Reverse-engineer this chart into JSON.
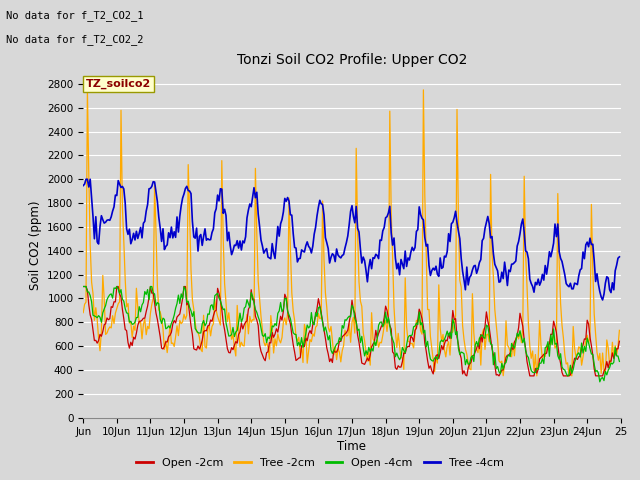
{
  "title": "Tonzi Soil CO2 Profile: Upper CO2",
  "ylabel": "Soil CO2 (ppm)",
  "xlabel": "Time",
  "annotation_line1": "No data for f_T2_CO2_1",
  "annotation_line2": "No data for f_T2_CO2_2",
  "legend_label": "TZ_soilco2",
  "ylim": [
    0,
    2900
  ],
  "yticks": [
    0,
    200,
    400,
    600,
    800,
    1000,
    1200,
    1400,
    1600,
    1800,
    2000,
    2200,
    2400,
    2600,
    2800
  ],
  "x_tick_labels": [
    "Jun",
    "10Jun",
    "11Jun",
    "12Jun",
    "13Jun",
    "14Jun",
    "15Jun",
    "16Jun",
    "17Jun",
    "18Jun",
    "19Jun",
    "20Jun",
    "21Jun",
    "22Jun",
    "23Jun",
    "24Jun",
    "25"
  ],
  "bg_color": "#d8d8d8",
  "plot_bg_color": "#d8d8d8",
  "grid_color": "#ffffff",
  "colors": {
    "open_2cm": "#cc0000",
    "tree_2cm": "#ffaa00",
    "open_4cm": "#00bb00",
    "tree_4cm": "#0000cc"
  },
  "legend_entries": [
    "Open -2cm",
    "Tree -2cm",
    "Open -4cm",
    "Tree -4cm"
  ]
}
